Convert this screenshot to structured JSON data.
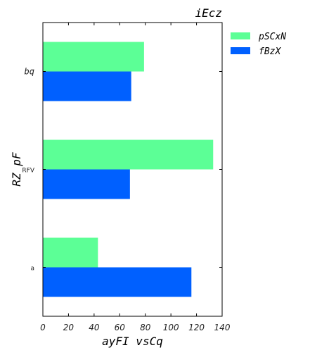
{
  "chart_data": {
    "type": "bar",
    "orientation": "horizontal",
    "title": "iEcz",
    "xlabel": "ayFI vsCq",
    "ylabel": "RZ  pF",
    "categories": [
      "a",
      "RFV",
      "bq"
    ],
    "series": [
      {
        "name": "pSCxN",
        "color": "#5cff96",
        "values": [
          43,
          133,
          79
        ]
      },
      {
        "name": "fBzX",
        "color": "#0060ff",
        "values": [
          116,
          68,
          69
        ]
      }
    ],
    "xlim": [
      0,
      140
    ],
    "xticks": [
      0,
      20,
      40,
      60,
      80,
      100,
      120,
      140
    ],
    "grid": false,
    "legend_position": "outside-top-right"
  }
}
